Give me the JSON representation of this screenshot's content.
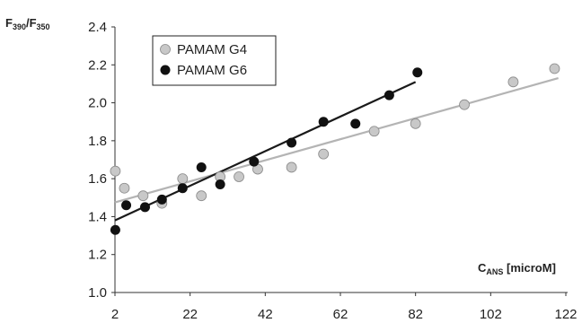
{
  "chart_data": {
    "type": "scatter",
    "ylabel": {
      "main": "F",
      "sub1": "390",
      "slash": "/F",
      "sub2": "350"
    },
    "xlabel": {
      "main": "C",
      "sub": "ANS",
      "rest": " [microM]"
    },
    "xlim": [
      2,
      122
    ],
    "ylim": [
      1.0,
      2.4
    ],
    "x_ticks": [
      2,
      22,
      42,
      62,
      82,
      102,
      122
    ],
    "y_ticks": [
      "1.0",
      "1.2",
      "1.4",
      "1.6",
      "1.8",
      "2.0",
      "2.2",
      "2.4"
    ],
    "grid": false,
    "legend_position": "top-left",
    "series": [
      {
        "name": "PAMAM G4",
        "color": "#c8c8c8",
        "line_color": "#b4b4b4",
        "points": [
          [
            2.1,
            1.64
          ],
          [
            4.5,
            1.55
          ],
          [
            9.5,
            1.51
          ],
          [
            14.5,
            1.47
          ],
          [
            20,
            1.6
          ],
          [
            25,
            1.51
          ],
          [
            30,
            1.61
          ],
          [
            35,
            1.61
          ],
          [
            40,
            1.65
          ],
          [
            49,
            1.66
          ],
          [
            57.5,
            1.73
          ],
          [
            71,
            1.85
          ],
          [
            82,
            1.89
          ],
          [
            95,
            1.99
          ],
          [
            108,
            2.11
          ],
          [
            119,
            2.18
          ]
        ],
        "trendline": [
          [
            2,
            1.475
          ],
          [
            120,
            2.13
          ]
        ]
      },
      {
        "name": "PAMAM G6",
        "color": "#111111",
        "line_color": "#1a1a1a",
        "points": [
          [
            2.1,
            1.33
          ],
          [
            5,
            1.46
          ],
          [
            10,
            1.45
          ],
          [
            14.5,
            1.49
          ],
          [
            20,
            1.55
          ],
          [
            25,
            1.66
          ],
          [
            30,
            1.57
          ],
          [
            39,
            1.69
          ],
          [
            49,
            1.79
          ],
          [
            57.5,
            1.9
          ],
          [
            66,
            1.89
          ],
          [
            75,
            2.04
          ],
          [
            82.5,
            2.16
          ]
        ],
        "trendline": [
          [
            2,
            1.38
          ],
          [
            82,
            2.11
          ]
        ]
      }
    ]
  }
}
